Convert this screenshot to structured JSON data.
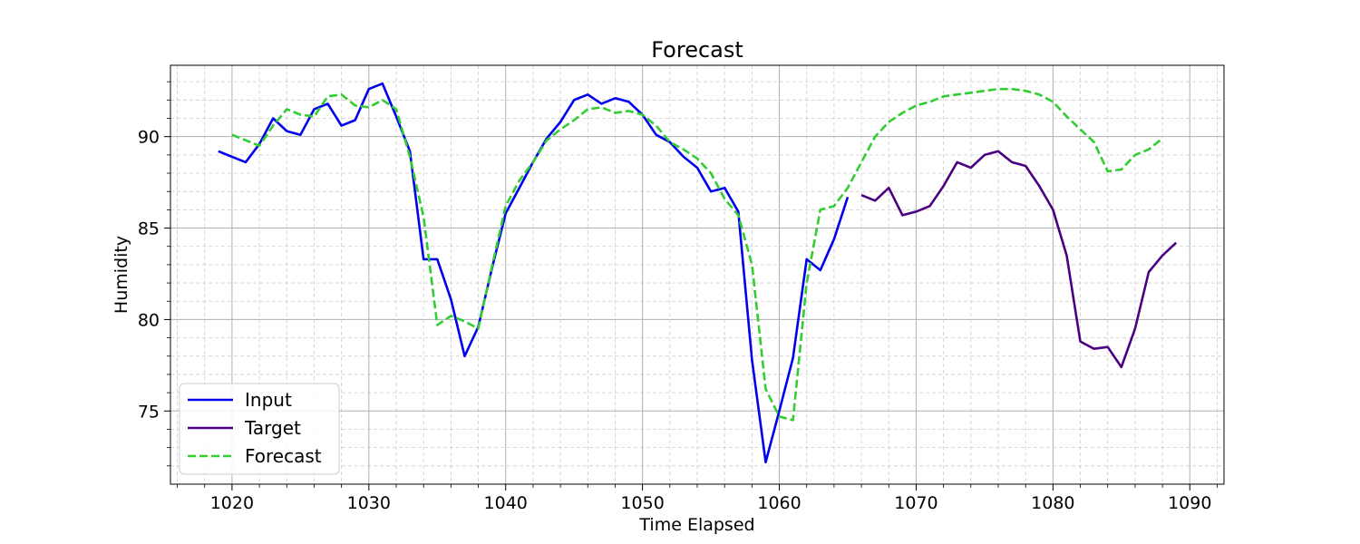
{
  "chart_data": {
    "type": "line",
    "title": "Forecast",
    "xlabel": "Time Elapsed",
    "ylabel": "Humidity",
    "xlim": [
      1015.5,
      1092.5
    ],
    "ylim": [
      71.0,
      93.9
    ],
    "xticks": [
      1020,
      1030,
      1040,
      1050,
      1060,
      1070,
      1080,
      1090
    ],
    "yticks": [
      75,
      80,
      85,
      90
    ],
    "grid": true,
    "minor_grid": true,
    "legend_position": "lower-left",
    "series": [
      {
        "name": "Input",
        "color": "#0000ee",
        "style": "solid",
        "x": [
          1019,
          1020,
          1021,
          1022,
          1023,
          1024,
          1025,
          1026,
          1027,
          1028,
          1029,
          1030,
          1031,
          1032,
          1033,
          1034,
          1035,
          1036,
          1037,
          1038,
          1039,
          1040,
          1041,
          1042,
          1043,
          1044,
          1045,
          1046,
          1047,
          1048,
          1049,
          1050,
          1051,
          1052,
          1053,
          1054,
          1055,
          1056,
          1057,
          1058,
          1059,
          1060,
          1061,
          1062,
          1063,
          1064,
          1065
        ],
        "y": [
          89.2,
          88.9,
          88.6,
          89.6,
          91.0,
          90.3,
          90.1,
          91.5,
          91.8,
          90.6,
          90.9,
          92.6,
          92.9,
          91.1,
          89.2,
          83.3,
          83.3,
          81.1,
          78.0,
          79.6,
          82.8,
          85.8,
          87.2,
          88.6,
          89.9,
          90.8,
          92.0,
          92.3,
          91.8,
          92.1,
          91.9,
          91.2,
          90.1,
          89.7,
          88.9,
          88.3,
          87.0,
          87.2,
          85.9,
          77.8,
          72.2,
          75.0,
          77.9,
          83.3,
          82.7,
          84.4,
          86.7
        ]
      },
      {
        "name": "Target",
        "color": "#4b0082",
        "style": "solid",
        "x": [
          1066,
          1067,
          1068,
          1069,
          1070,
          1071,
          1072,
          1073,
          1074,
          1075,
          1076,
          1077,
          1078,
          1079,
          1080,
          1081,
          1082,
          1083,
          1084,
          1085,
          1086,
          1087,
          1088,
          1089
        ],
        "y": [
          86.8,
          86.5,
          87.2,
          85.7,
          85.9,
          86.2,
          87.3,
          88.6,
          88.3,
          89.0,
          89.2,
          88.6,
          88.4,
          87.3,
          86.0,
          83.5,
          78.8,
          78.4,
          78.5,
          77.4,
          79.5,
          82.6,
          83.5,
          84.2
        ]
      },
      {
        "name": "Forecast",
        "color": "#32cd32",
        "style": "dashed",
        "x": [
          1020,
          1021,
          1022,
          1023,
          1024,
          1025,
          1026,
          1027,
          1028,
          1029,
          1030,
          1031,
          1032,
          1033,
          1034,
          1035,
          1036,
          1037,
          1038,
          1039,
          1040,
          1041,
          1042,
          1043,
          1044,
          1045,
          1046,
          1047,
          1048,
          1049,
          1050,
          1051,
          1052,
          1053,
          1054,
          1055,
          1056,
          1057,
          1058,
          1059,
          1060,
          1061,
          1062,
          1063,
          1064,
          1065,
          1066,
          1067,
          1068,
          1069,
          1070,
          1071,
          1072,
          1073,
          1074,
          1075,
          1076,
          1077,
          1078,
          1079,
          1080,
          1081,
          1082,
          1083,
          1084,
          1085,
          1086,
          1087,
          1088
        ],
        "y": [
          90.1,
          89.8,
          89.5,
          90.6,
          91.5,
          91.2,
          91.1,
          92.2,
          92.3,
          91.7,
          91.6,
          92.0,
          91.5,
          88.9,
          85.6,
          79.7,
          80.2,
          79.9,
          79.5,
          82.9,
          86.2,
          87.6,
          88.6,
          89.8,
          90.4,
          90.9,
          91.5,
          91.6,
          91.3,
          91.4,
          91.2,
          90.6,
          89.7,
          89.3,
          88.8,
          88.0,
          86.6,
          85.7,
          83.0,
          76.2,
          74.7,
          74.5,
          82.0,
          86.0,
          86.2,
          87.2,
          88.6,
          90.0,
          90.8,
          91.3,
          91.7,
          91.9,
          92.2,
          92.3,
          92.4,
          92.5,
          92.6,
          92.6,
          92.5,
          92.3,
          91.9,
          91.1,
          90.4,
          89.7,
          88.1,
          88.2,
          89.0,
          89.3,
          89.9
        ]
      }
    ]
  }
}
